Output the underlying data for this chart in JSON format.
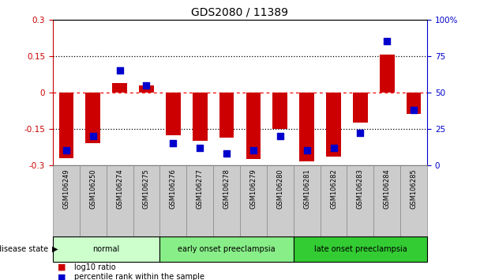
{
  "title": "GDS2080 / 11389",
  "samples": [
    "GSM106249",
    "GSM106250",
    "GSM106274",
    "GSM106275",
    "GSM106276",
    "GSM106277",
    "GSM106278",
    "GSM106279",
    "GSM106280",
    "GSM106281",
    "GSM106282",
    "GSM106283",
    "GSM106284",
    "GSM106285"
  ],
  "log10_ratio": [
    -0.27,
    -0.21,
    0.04,
    0.03,
    -0.175,
    -0.2,
    -0.185,
    -0.275,
    -0.15,
    -0.285,
    -0.265,
    -0.125,
    0.155,
    -0.09
  ],
  "percentile_rank": [
    10,
    20,
    65,
    55,
    15,
    12,
    8,
    10,
    20,
    10,
    12,
    22,
    85,
    38
  ],
  "groups": [
    {
      "label": "normal",
      "start": 0,
      "end": 4,
      "color": "#ccffcc"
    },
    {
      "label": "early onset preeclampsia",
      "start": 4,
      "end": 9,
      "color": "#88ee88"
    },
    {
      "label": "late onset preeclampsia",
      "start": 9,
      "end": 14,
      "color": "#33cc33"
    }
  ],
  "bar_color": "#cc0000",
  "dot_color": "#0000cc",
  "ylim_left": [
    -0.3,
    0.3
  ],
  "ylim_right": [
    0,
    100
  ],
  "yticks_left": [
    -0.3,
    -0.15,
    0,
    0.15,
    0.3
  ],
  "yticks_right": [
    0,
    25,
    50,
    75,
    100
  ],
  "ytick_labels_right": [
    "0",
    "25",
    "50",
    "75",
    "100%"
  ],
  "hlines_dotted": [
    -0.15,
    0.15
  ],
  "hline_red_dashed": 0,
  "background_color": "#ffffff",
  "legend_log10": "log10 ratio",
  "legend_pct": "percentile rank within the sample",
  "disease_state_label": "disease state",
  "bar_width": 0.55,
  "dot_size": 35,
  "label_color_left": "#cc0000",
  "label_color_right": "#0000cc",
  "sample_box_color": "#cccccc",
  "sample_box_edge": "#888888"
}
